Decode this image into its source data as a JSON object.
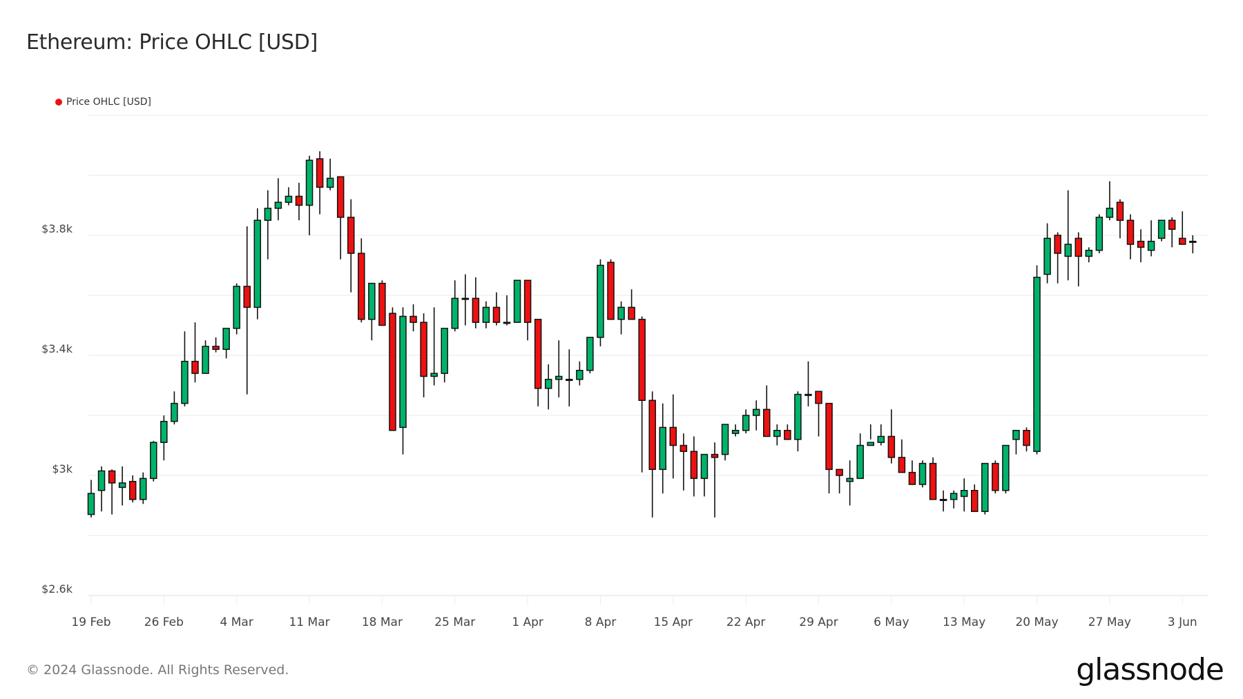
{
  "header": {
    "title": "Ethereum: Price OHLC [USD]"
  },
  "legend": {
    "label": "Price OHLC [USD]",
    "color": "#ee1111"
  },
  "footer": {
    "copyright": "© 2024 Glassnode. All Rights Reserved.",
    "logo": "glassnode"
  },
  "colors": {
    "up": "#00b36b",
    "down": "#ee1111",
    "wick": "#111111",
    "grid": "#eeeeee"
  },
  "chart_data": {
    "type": "candlestick",
    "title": "Ethereum: Price OHLC [USD]",
    "xlabel": "",
    "ylabel": "",
    "ylim": [
      2600,
      4200
    ],
    "yticks": [
      2600,
      2800,
      3000,
      3200,
      3400,
      3600,
      3800,
      4000,
      4200
    ],
    "ytick_labels": [
      {
        "value": 2600,
        "label": "$2.6k"
      },
      {
        "value": 3000,
        "label": "$3k"
      },
      {
        "value": 3400,
        "label": "$3.4k"
      },
      {
        "value": 3800,
        "label": "$3.8k"
      }
    ],
    "grid": true,
    "legend_position": "top-left",
    "x_ticks": [
      "19 Feb",
      "26 Feb",
      "4 Mar",
      "11 Mar",
      "18 Mar",
      "25 Mar",
      "1 Apr",
      "8 Apr",
      "15 Apr",
      "22 Apr",
      "29 Apr",
      "6 May",
      "13 May",
      "20 May",
      "27 May",
      "3 Jun"
    ],
    "start_date": "19 Feb",
    "series": [
      {
        "name": "Price OHLC [USD]",
        "ohlc": [
          [
            2870,
            2985,
            2860,
            2940
          ],
          [
            2950,
            3030,
            2880,
            3015
          ],
          [
            3015,
            3020,
            2870,
            2975
          ],
          [
            2960,
            3030,
            2900,
            2975
          ],
          [
            2980,
            3000,
            2910,
            2920
          ],
          [
            2920,
            3010,
            2905,
            2990
          ],
          [
            2990,
            3115,
            2980,
            3110
          ],
          [
            3110,
            3200,
            3050,
            3180
          ],
          [
            3180,
            3280,
            3170,
            3240
          ],
          [
            3240,
            3480,
            3230,
            3380
          ],
          [
            3380,
            3510,
            3310,
            3340
          ],
          [
            3340,
            3450,
            3340,
            3430
          ],
          [
            3430,
            3460,
            3410,
            3420
          ],
          [
            3420,
            3490,
            3390,
            3490
          ],
          [
            3490,
            3640,
            3470,
            3630
          ],
          [
            3630,
            3830,
            3270,
            3560
          ],
          [
            3560,
            3890,
            3520,
            3850
          ],
          [
            3850,
            3950,
            3720,
            3890
          ],
          [
            3890,
            3990,
            3850,
            3910
          ],
          [
            3910,
            3960,
            3900,
            3930
          ],
          [
            3930,
            3975,
            3850,
            3900
          ],
          [
            3900,
            4065,
            3800,
            4050
          ],
          [
            4055,
            4080,
            3870,
            3960
          ],
          [
            3960,
            4055,
            3950,
            3990
          ],
          [
            3995,
            3995,
            3720,
            3860
          ],
          [
            3860,
            3920,
            3610,
            3740
          ],
          [
            3740,
            3790,
            3510,
            3520
          ],
          [
            3520,
            3560,
            3450,
            3640
          ],
          [
            3640,
            3650,
            3530,
            3500
          ],
          [
            3540,
            3560,
            3470,
            3150
          ],
          [
            3160,
            3560,
            3070,
            3530
          ],
          [
            3530,
            3570,
            3480,
            3510
          ],
          [
            3510,
            3540,
            3260,
            3330
          ],
          [
            3330,
            3560,
            3300,
            3340
          ],
          [
            3340,
            3420,
            3310,
            3490
          ],
          [
            3490,
            3650,
            3480,
            3590
          ],
          [
            3590,
            3670,
            3500,
            3590
          ],
          [
            3590,
            3660,
            3490,
            3510
          ],
          [
            3510,
            3580,
            3490,
            3560
          ],
          [
            3560,
            3610,
            3500,
            3510
          ],
          [
            3510,
            3600,
            3500,
            3510
          ],
          [
            3510,
            3650,
            3510,
            3650
          ],
          [
            3650,
            3650,
            3450,
            3510
          ],
          [
            3520,
            3520,
            3230,
            3290
          ],
          [
            3290,
            3370,
            3220,
            3320
          ],
          [
            3320,
            3450,
            3260,
            3330
          ],
          [
            3320,
            3420,
            3230,
            3320
          ],
          [
            3320,
            3380,
            3300,
            3350
          ],
          [
            3350,
            3460,
            3340,
            3460
          ],
          [
            3460,
            3720,
            3430,
            3700
          ],
          [
            3710,
            3720,
            3540,
            3520
          ],
          [
            3520,
            3580,
            3470,
            3560
          ],
          [
            3560,
            3620,
            3520,
            3520
          ],
          [
            3520,
            3530,
            3010,
            3250
          ],
          [
            3250,
            3280,
            2860,
            3020
          ],
          [
            3020,
            3240,
            2940,
            3160
          ],
          [
            3160,
            3270,
            2990,
            3100
          ],
          [
            3100,
            3140,
            2950,
            3080
          ],
          [
            3080,
            3130,
            2930,
            2990
          ],
          [
            2990,
            3060,
            2930,
            3070
          ],
          [
            3070,
            3110,
            2860,
            3060
          ],
          [
            3070,
            3170,
            3050,
            3170
          ],
          [
            3140,
            3170,
            3130,
            3150
          ],
          [
            3150,
            3220,
            3140,
            3200
          ],
          [
            3200,
            3250,
            3150,
            3220
          ],
          [
            3220,
            3300,
            3130,
            3130
          ],
          [
            3130,
            3170,
            3100,
            3150
          ],
          [
            3150,
            3170,
            3130,
            3120
          ],
          [
            3120,
            3280,
            3080,
            3270
          ],
          [
            3270,
            3380,
            3230,
            3270
          ],
          [
            3280,
            3280,
            3130,
            3240
          ],
          [
            3240,
            3230,
            2940,
            3020
          ],
          [
            3020,
            3020,
            2940,
            3000
          ],
          [
            2980,
            3050,
            2900,
            2990
          ],
          [
            2990,
            3140,
            2990,
            3100
          ],
          [
            3100,
            3170,
            3120,
            3110
          ],
          [
            3110,
            3170,
            3100,
            3130
          ],
          [
            3130,
            3220,
            3040,
            3060
          ],
          [
            3060,
            3120,
            3020,
            3010
          ],
          [
            3010,
            3050,
            2980,
            2970
          ],
          [
            2970,
            3050,
            2960,
            3040
          ],
          [
            3040,
            3060,
            2980,
            2920
          ],
          [
            2920,
            2950,
            2880,
            2920
          ],
          [
            2920,
            2950,
            2890,
            2940
          ],
          [
            2930,
            2990,
            2880,
            2950
          ],
          [
            2950,
            2970,
            2880,
            2880
          ],
          [
            2880,
            3040,
            2870,
            3040
          ],
          [
            3040,
            3050,
            2940,
            2950
          ],
          [
            2950,
            3100,
            2940,
            3100
          ],
          [
            3120,
            3150,
            3070,
            3150
          ],
          [
            3150,
            3160,
            3080,
            3100
          ],
          [
            3080,
            3700,
            3070,
            3660
          ],
          [
            3670,
            3840,
            3640,
            3790
          ],
          [
            3800,
            3810,
            3640,
            3740
          ],
          [
            3730,
            3950,
            3650,
            3770
          ],
          [
            3790,
            3810,
            3630,
            3730
          ],
          [
            3730,
            3760,
            3710,
            3750
          ],
          [
            3750,
            3870,
            3740,
            3860
          ],
          [
            3860,
            3980,
            3850,
            3890
          ],
          [
            3910,
            3920,
            3790,
            3850
          ],
          [
            3850,
            3870,
            3720,
            3770
          ],
          [
            3780,
            3820,
            3710,
            3760
          ],
          [
            3750,
            3850,
            3730,
            3780
          ],
          [
            3790,
            3850,
            3780,
            3850
          ],
          [
            3850,
            3860,
            3760,
            3820
          ],
          [
            3790,
            3880,
            3780,
            3770
          ],
          [
            3780,
            3800,
            3740,
            3780
          ]
        ]
      }
    ]
  }
}
